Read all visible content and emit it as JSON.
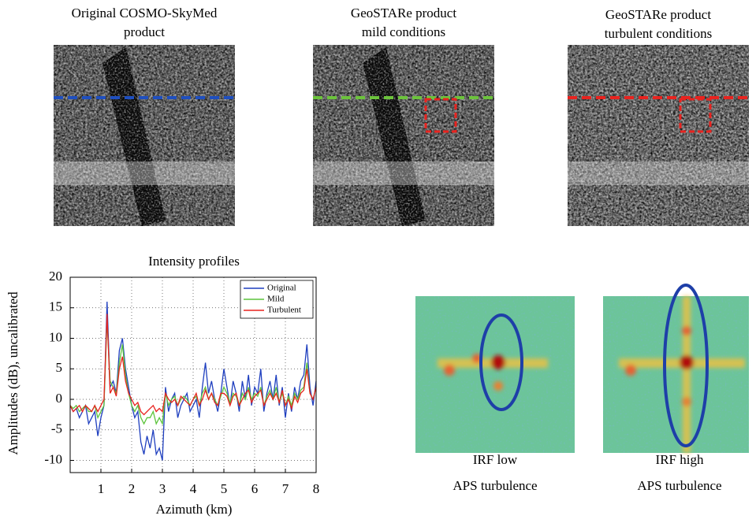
{
  "panels": [
    {
      "title": [
        "Original COSMO-SkyMed",
        "product"
      ]
    },
    {
      "title": [
        "GeoSTARe product",
        "mild conditions"
      ]
    },
    {
      "title": [
        "GeoSTARe product",
        "turbulent conditions"
      ]
    }
  ],
  "irf_panels": [
    {
      "caption": [
        "IRF low",
        "APS turbulence"
      ]
    },
    {
      "caption": [
        "IRF high",
        "APS turbulence"
      ]
    }
  ],
  "chart_data": {
    "type": "line",
    "title": "Intensity profiles",
    "x_label": "Azimuth  (km)",
    "y_label": "Amplitudes (dB), uncalibrated",
    "x": [
      0,
      0.1,
      0.2,
      0.3,
      0.4,
      0.5,
      0.6,
      0.7,
      0.8,
      0.9,
      1,
      1.1,
      1.2,
      1.3,
      1.4,
      1.5,
      1.6,
      1.7,
      1.8,
      1.9,
      2,
      2.1,
      2.2,
      2.3,
      2.4,
      2.5,
      2.6,
      2.7,
      2.8,
      2.9,
      3,
      3.1,
      3.2,
      3.3,
      3.4,
      3.5,
      3.6,
      3.7,
      3.8,
      3.9,
      4,
      4.1,
      4.2,
      4.3,
      4.4,
      4.5,
      4.6,
      4.7,
      4.8,
      4.9,
      5,
      5.1,
      5.2,
      5.3,
      5.4,
      5.5,
      5.6,
      5.7,
      5.8,
      5.9,
      6,
      6.1,
      6.2,
      6.3,
      6.4,
      6.5,
      6.6,
      6.7,
      6.8,
      6.9,
      7,
      7.1,
      7.2,
      7.3,
      7.4,
      7.5,
      7.6,
      7.7,
      7.8,
      7.9,
      8
    ],
    "series": [
      {
        "name": "Original",
        "color": "#1f3fbf",
        "values": [
          -1,
          -2,
          -1.5,
          -3,
          -2,
          -1,
          -4,
          -3,
          -2,
          -6,
          -3,
          -1,
          16,
          2,
          3,
          1,
          8,
          10,
          5,
          2,
          -1,
          -3,
          -2,
          -7,
          -9,
          -6,
          -8,
          -5,
          -9,
          -8,
          -10,
          2,
          -2,
          0,
          1,
          -3,
          -1,
          0,
          1,
          -2,
          -1,
          0,
          -3,
          2,
          6,
          1,
          3,
          0,
          -2,
          1,
          5,
          2,
          -1,
          3,
          1,
          -2,
          3,
          0,
          4,
          -1,
          2,
          1,
          5,
          -2,
          1,
          3,
          0,
          4,
          -1,
          2,
          -3,
          1,
          -2,
          2,
          0,
          3,
          4,
          9,
          2,
          -1,
          3
        ]
      },
      {
        "name": "Mild",
        "color": "#5cc43c",
        "values": [
          -1,
          -1.5,
          -1,
          -2,
          -1.5,
          -1,
          -2,
          -2,
          -1,
          -3,
          -2,
          -1,
          13,
          3,
          2,
          1,
          6,
          9,
          4,
          1,
          -1,
          -2,
          -1,
          -3,
          -4,
          -3,
          -3,
          -2,
          -4,
          -3,
          -4,
          1,
          -1,
          0,
          0.5,
          -1,
          0,
          0.5,
          0,
          -1,
          0,
          0.5,
          -1,
          1,
          2,
          0,
          1,
          0,
          -1,
          0.5,
          2,
          1,
          -0.5,
          1,
          0.5,
          -1,
          1,
          0,
          2,
          0,
          1,
          0.5,
          2,
          -1,
          0.5,
          1.5,
          0,
          2,
          -0.5,
          1,
          -1,
          0.5,
          -1,
          1,
          0,
          1.5,
          2,
          6,
          1,
          0,
          2
        ]
      },
      {
        "name": "Turbulent",
        "color": "#e8231f",
        "values": [
          -1,
          -2,
          -1.5,
          -1,
          -2,
          -1,
          -1.5,
          -2,
          -1,
          -2,
          -1,
          0,
          14,
          1,
          2,
          0.5,
          5,
          7,
          3,
          1,
          0,
          -1,
          -0.5,
          -2,
          -2.5,
          -2,
          -1.5,
          -1,
          -2,
          -1.5,
          -2,
          1,
          0,
          -0.5,
          0,
          -1,
          0.5,
          0,
          -0.5,
          -1,
          0,
          1,
          -1,
          0,
          1.5,
          0,
          1,
          -0.5,
          -1,
          1,
          1,
          0.5,
          -1,
          0.5,
          1,
          -1,
          0,
          1,
          1.5,
          -0.5,
          0.5,
          1,
          1.5,
          -1,
          0,
          1,
          0,
          1,
          -0.5,
          1.5,
          -1,
          0,
          -1.5,
          0.5,
          -0.5,
          1,
          1.5,
          5,
          1,
          0,
          2
        ]
      }
    ],
    "xlim": [
      0,
      8
    ],
    "xticks": [
      1,
      2,
      3,
      4,
      5,
      6,
      7,
      8
    ],
    "ylim": [
      -12,
      20
    ],
    "yticks": [
      -10,
      -5,
      0,
      5,
      10,
      15,
      20
    ],
    "grid": true,
    "legend": "upper-right"
  }
}
